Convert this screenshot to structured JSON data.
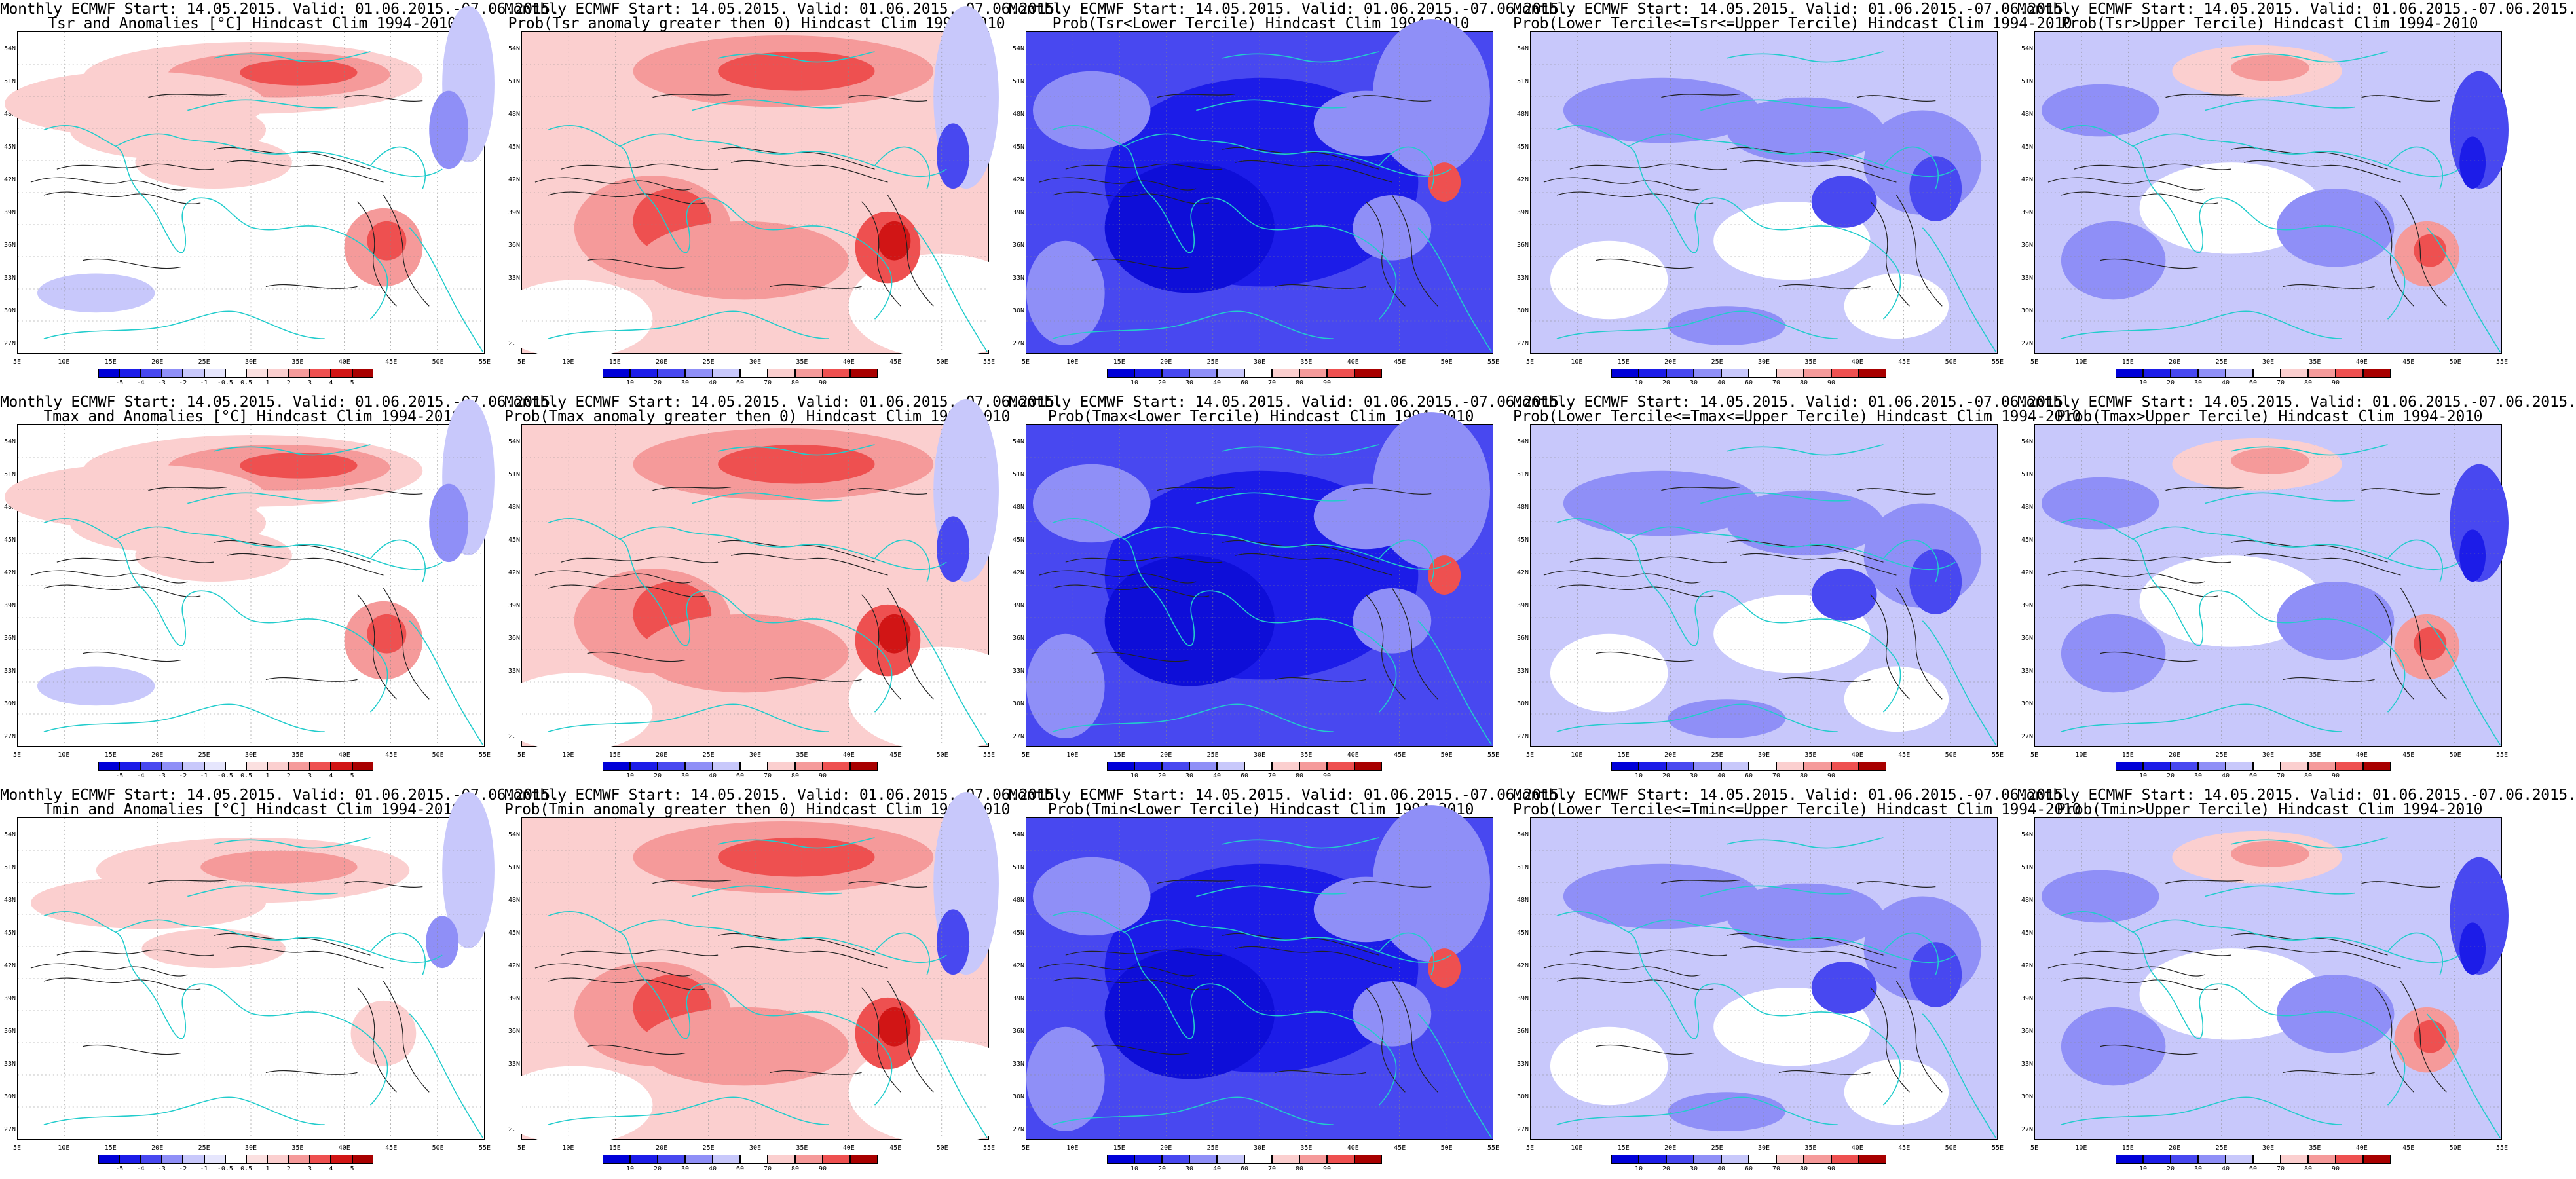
{
  "map_grid": {
    "lat_labels": [
      "54N",
      "51N",
      "48N",
      "45N",
      "42N",
      "39N",
      "36N",
      "33N",
      "30N",
      "27N"
    ],
    "lon_labels": [
      "5E",
      "10E",
      "15E",
      "20E",
      "25E",
      "30E",
      "35E",
      "40E",
      "45E",
      "50E",
      "55E"
    ]
  },
  "colors": {
    "deep_blue": "#1c1ce8",
    "blue": "#4848f0",
    "mid_blue": "#8f8ff7",
    "light_blue": "#c8c8fb",
    "white": "#ffffff",
    "light_red": "#fbcfcf",
    "mid_red": "#f59a9a",
    "red": "#ee5050",
    "deep_red": "#d11515",
    "coast": "#22cccc",
    "contour": "#222222"
  },
  "colorbars": {
    "anomaly": {
      "labels": [
        "-5",
        "-4",
        "-3",
        "-2",
        "-1",
        "-0.5",
        "0.5",
        "1",
        "2",
        "3",
        "4",
        "5"
      ],
      "colors": [
        "#0000d8",
        "#1c1ce8",
        "#4848f0",
        "#8f8ff7",
        "#c8c8fb",
        "#e6e6fd",
        "#ffffff",
        "#fbe0e0",
        "#fbcfcf",
        "#f59a9a",
        "#ee5050",
        "#d11515",
        "#a80000"
      ]
    },
    "prob": {
      "labels": [
        "10",
        "20",
        "30",
        "40",
        "60",
        "70",
        "80",
        "90"
      ],
      "colors": [
        "#0000d8",
        "#1c1ce8",
        "#4848f0",
        "#8f8ff7",
        "#c8c8fb",
        "#ffffff",
        "#fbcfcf",
        "#f59a9a",
        "#ee5050",
        "#a80000"
      ]
    }
  },
  "panels": [
    {
      "line1": "Monthly ECMWF Start: 14.05.2015. Valid: 01.06.2015.-07.06.2015.",
      "line2": "Tsr and Anomalies [°C] Hindcast Clim 1994-2010",
      "cbar": "anomaly",
      "scheme": "anom"
    },
    {
      "line1": "Monthly ECMWF Start: 14.05.2015. Valid: 01.06.2015.-07.06.2015.",
      "line2": "Prob(Tsr anomaly greater then 0) Hindcast Clim 1994-2010",
      "cbar": "prob",
      "scheme": "warm"
    },
    {
      "line1": "Monthly ECMWF Start: 14.05.2015. Valid: 01.06.2015.-07.06.2015.",
      "line2": "Prob(Tsr<Lower Tercile) Hindcast Clim 1994-2010",
      "cbar": "prob",
      "scheme": "cold"
    },
    {
      "line1": "Monthly ECMWF Start: 14.05.2015. Valid: 01.06.2015.-07.06.2015.",
      "line2": "Prob(Lower Tercile<=Tsr<=Upper Tercile) Hindcast Clim 1994-2010",
      "cbar": "prob",
      "scheme": "mid"
    },
    {
      "line1": "Monthly ECMWF Start: 14.05.2015. Valid: 01.06.2015.-07.06.2015.",
      "line2": "Prob(Tsr>Upper Tercile) Hindcast Clim 1994-2010",
      "cbar": "prob",
      "scheme": "upper"
    },
    {
      "line1": "Monthly ECMWF Start: 14.05.2015. Valid: 01.06.2015.-07.06.2015.",
      "line2": "Tmax and Anomalies [°C] Hindcast Clim 1994-2010",
      "cbar": "anomaly",
      "scheme": "anom"
    },
    {
      "line1": "Monthly ECMWF Start: 14.05.2015. Valid: 01.06.2015.-07.06.2015.",
      "line2": "Prob(Tmax anomaly greater then 0) Hindcast Clim 1994-2010",
      "cbar": "prob",
      "scheme": "warm"
    },
    {
      "line1": "Monthly ECMWF Start: 14.05.2015. Valid: 01.06.2015.-07.06.2015.",
      "line2": "Prob(Tmax<Lower Tercile) Hindcast Clim 1994-2010",
      "cbar": "prob",
      "scheme": "cold"
    },
    {
      "line1": "Monthly ECMWF Start: 14.05.2015. Valid: 01.06.2015.-07.06.2015.",
      "line2": "Prob(Lower Tercile<=Tmax<=Upper Tercile) Hindcast Clim 1994-2010",
      "cbar": "prob",
      "scheme": "mid"
    },
    {
      "line1": "Monthly ECMWF Start: 14.05.2015. Valid: 01.06.2015.-07.06.2015.",
      "line2": "Prob(Tmax>Upper Tercile) Hindcast Clim 1994-2010",
      "cbar": "prob",
      "scheme": "upper"
    },
    {
      "line1": "Monthly ECMWF Start: 14.05.2015. Valid: 01.06.2015.-07.06.2015.",
      "line2": "Tmin and Anomalies [°C] Hindcast Clim 1994-2010",
      "cbar": "anomaly",
      "scheme": "anom_weak"
    },
    {
      "line1": "Monthly ECMWF Start: 14.05.2015. Valid: 01.06.2015.-07.06.2015.",
      "line2": "Prob(Tmin anomaly greater then 0) Hindcast Clim 1994-2010",
      "cbar": "prob",
      "scheme": "warm"
    },
    {
      "line1": "Monthly ECMWF Start: 14.05.2015. Valid: 01.06.2015.-07.06.2015.",
      "line2": "Prob(Tmin<Lower Tercile) Hindcast Clim 1994-2010",
      "cbar": "prob",
      "scheme": "cold"
    },
    {
      "line1": "Monthly ECMWF Start: 14.05.2015. Valid: 01.06.2015.-07.06.2015.",
      "line2": "Prob(Lower Tercile<=Tmin<=Upper Tercile) Hindcast Clim 1994-2010",
      "cbar": "prob",
      "scheme": "mid"
    },
    {
      "line1": "Monthly ECMWF Start: 14.05.2015. Valid: 01.06.2015.-07.06.2015.",
      "line2": "Prob(Tmin>Upper Tercile) Hindcast Clim 1994-2010",
      "cbar": "prob",
      "scheme": "upper"
    }
  ]
}
